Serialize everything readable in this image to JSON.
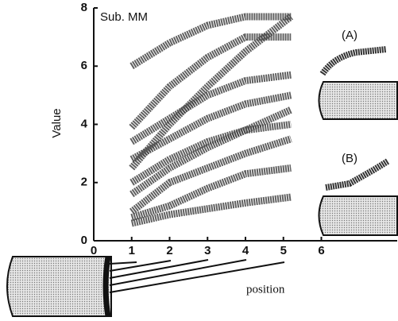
{
  "chart_data": {
    "type": "line",
    "title": "Sub. MM",
    "y_label": "Value",
    "x_label": "position",
    "annotations": [
      "(A)",
      "(B)"
    ],
    "x": [
      1,
      2,
      3,
      4,
      5.2
    ],
    "series": [
      {
        "color": "#444",
        "values": [
          6.0,
          6.8,
          7.4,
          7.7,
          7.7
        ]
      },
      {
        "color": "#444",
        "values": [
          3.9,
          5.3,
          6.3,
          7.0,
          7.0
        ]
      },
      {
        "color": "#444",
        "values": [
          2.5,
          4.0,
          5.3,
          6.5,
          7.7
        ]
      },
      {
        "color": "#444",
        "values": [
          3.4,
          4.2,
          5.0,
          5.5,
          5.7
        ]
      },
      {
        "color": "#444",
        "values": [
          2.8,
          3.5,
          4.2,
          4.7,
          5.0
        ]
      },
      {
        "color": "#444",
        "values": [
          1.6,
          2.5,
          3.2,
          3.8,
          4.5
        ]
      },
      {
        "color": "#444",
        "values": [
          2.0,
          2.8,
          3.4,
          3.8,
          4.0
        ]
      },
      {
        "color": "#444",
        "values": [
          1.0,
          2.0,
          2.5,
          3.0,
          3.5
        ]
      },
      {
        "color": "#444",
        "values": [
          0.8,
          1.2,
          1.8,
          2.3,
          2.5
        ]
      },
      {
        "color": "#444",
        "values": [
          0.6,
          0.9,
          1.1,
          1.3,
          1.5
        ]
      }
    ],
    "xlim": [
      0,
      8
    ],
    "ylim": [
      0,
      8
    ],
    "xticks": [
      0,
      1,
      2,
      3,
      4,
      5,
      6
    ],
    "yticks": [
      0,
      2,
      4,
      6,
      8
    ]
  }
}
